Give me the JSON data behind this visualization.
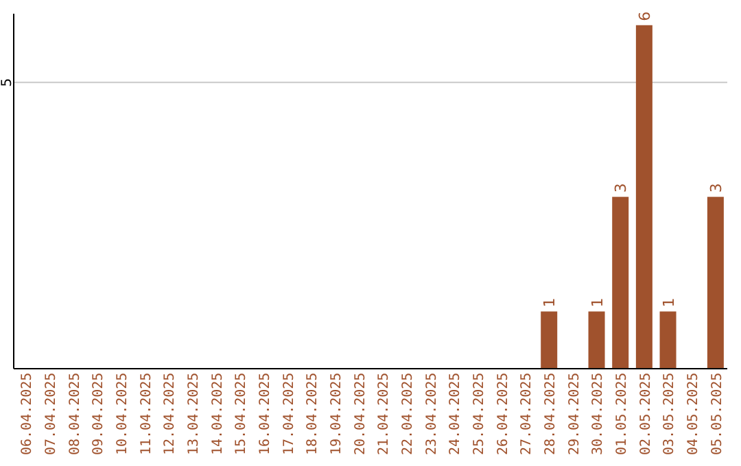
{
  "chart_data": {
    "type": "bar",
    "categories": [
      "06.04.2025",
      "07.04.2025",
      "08.04.2025",
      "09.04.2025",
      "10.04.2025",
      "11.04.2025",
      "12.04.2025",
      "13.04.2025",
      "14.04.2025",
      "15.04.2025",
      "16.04.2025",
      "17.04.2025",
      "18.04.2025",
      "19.04.2025",
      "20.04.2025",
      "21.04.2025",
      "22.04.2025",
      "23.04.2025",
      "24.04.2025",
      "25.04.2025",
      "26.04.2025",
      "27.04.2025",
      "28.04.2025",
      "29.04.2025",
      "30.04.2025",
      "01.05.2025",
      "02.05.2025",
      "03.05.2025",
      "04.05.2025",
      "05.05.2025"
    ],
    "values": [
      null,
      null,
      null,
      null,
      null,
      null,
      null,
      null,
      null,
      null,
      null,
      null,
      null,
      null,
      null,
      null,
      null,
      null,
      null,
      null,
      null,
      null,
      1,
      null,
      1,
      3,
      6,
      1,
      null,
      3
    ],
    "data_labels": true,
    "color": "#a0522d",
    "ylim": [
      0,
      6.2
    ],
    "yticks": [
      5
    ],
    "grid": "y",
    "legend": false
  }
}
